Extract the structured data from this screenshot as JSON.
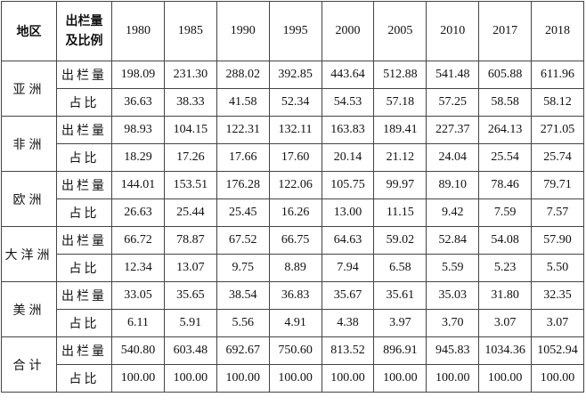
{
  "table": {
    "header": {
      "region": "地区",
      "measure_lines": [
        "出栏量",
        "及比例"
      ],
      "years": [
        "1980",
        "1985",
        "1990",
        "1995",
        "2000",
        "2005",
        "2010",
        "2017",
        "2018"
      ]
    },
    "groups": [
      {
        "region": "亚洲",
        "rows": [
          {
            "label": "出栏量",
            "values": [
              "198.09",
              "231.30",
              "288.02",
              "392.85",
              "443.64",
              "512.88",
              "541.48",
              "605.88",
              "611.96"
            ]
          },
          {
            "label": "占比",
            "values": [
              "36.63",
              "38.33",
              "41.58",
              "52.34",
              "54.53",
              "57.18",
              "57.25",
              "58.58",
              "58.12"
            ]
          }
        ]
      },
      {
        "region": "非洲",
        "rows": [
          {
            "label": "出栏量",
            "values": [
              "98.93",
              "104.15",
              "122.31",
              "132.11",
              "163.83",
              "189.41",
              "227.37",
              "264.13",
              "271.05"
            ]
          },
          {
            "label": "占比",
            "values": [
              "18.29",
              "17.26",
              "17.66",
              "17.60",
              "20.14",
              "21.12",
              "24.04",
              "25.54",
              "25.74"
            ]
          }
        ]
      },
      {
        "region": "欧洲",
        "rows": [
          {
            "label": "出栏量",
            "values": [
              "144.01",
              "153.51",
              "176.28",
              "122.06",
              "105.75",
              "99.97",
              "89.10",
              "78.46",
              "79.71"
            ]
          },
          {
            "label": "占比",
            "values": [
              "26.63",
              "25.44",
              "25.45",
              "16.26",
              "13.00",
              "11.15",
              "9.42",
              "7.59",
              "7.57"
            ]
          }
        ]
      },
      {
        "region": "大洋洲",
        "rows": [
          {
            "label": "出栏量",
            "values": [
              "66.72",
              "78.87",
              "67.52",
              "66.75",
              "64.63",
              "59.02",
              "52.84",
              "54.08",
              "57.90"
            ]
          },
          {
            "label": "占比",
            "values": [
              "12.34",
              "13.07",
              "9.75",
              "8.89",
              "7.94",
              "6.58",
              "5.59",
              "5.23",
              "5.50"
            ]
          }
        ]
      },
      {
        "region": "美洲",
        "rows": [
          {
            "label": "出栏量",
            "values": [
              "33.05",
              "35.65",
              "38.54",
              "36.83",
              "35.67",
              "35.61",
              "35.03",
              "31.80",
              "32.35"
            ]
          },
          {
            "label": "占比",
            "values": [
              "6.11",
              "5.91",
              "5.56",
              "4.91",
              "4.38",
              "3.97",
              "3.70",
              "3.07",
              "3.07"
            ]
          }
        ]
      },
      {
        "region": "合计",
        "rows": [
          {
            "label": "出栏量",
            "values": [
              "540.80",
              "603.48",
              "692.67",
              "750.60",
              "813.52",
              "896.91",
              "945.83",
              "1034.36",
              "1052.94"
            ]
          },
          {
            "label": "占比",
            "values": [
              "100.00",
              "100.00",
              "100.00",
              "100.00",
              "100.00",
              "100.00",
              "100.00",
              "100.00",
              "100.00"
            ]
          }
        ]
      }
    ]
  }
}
